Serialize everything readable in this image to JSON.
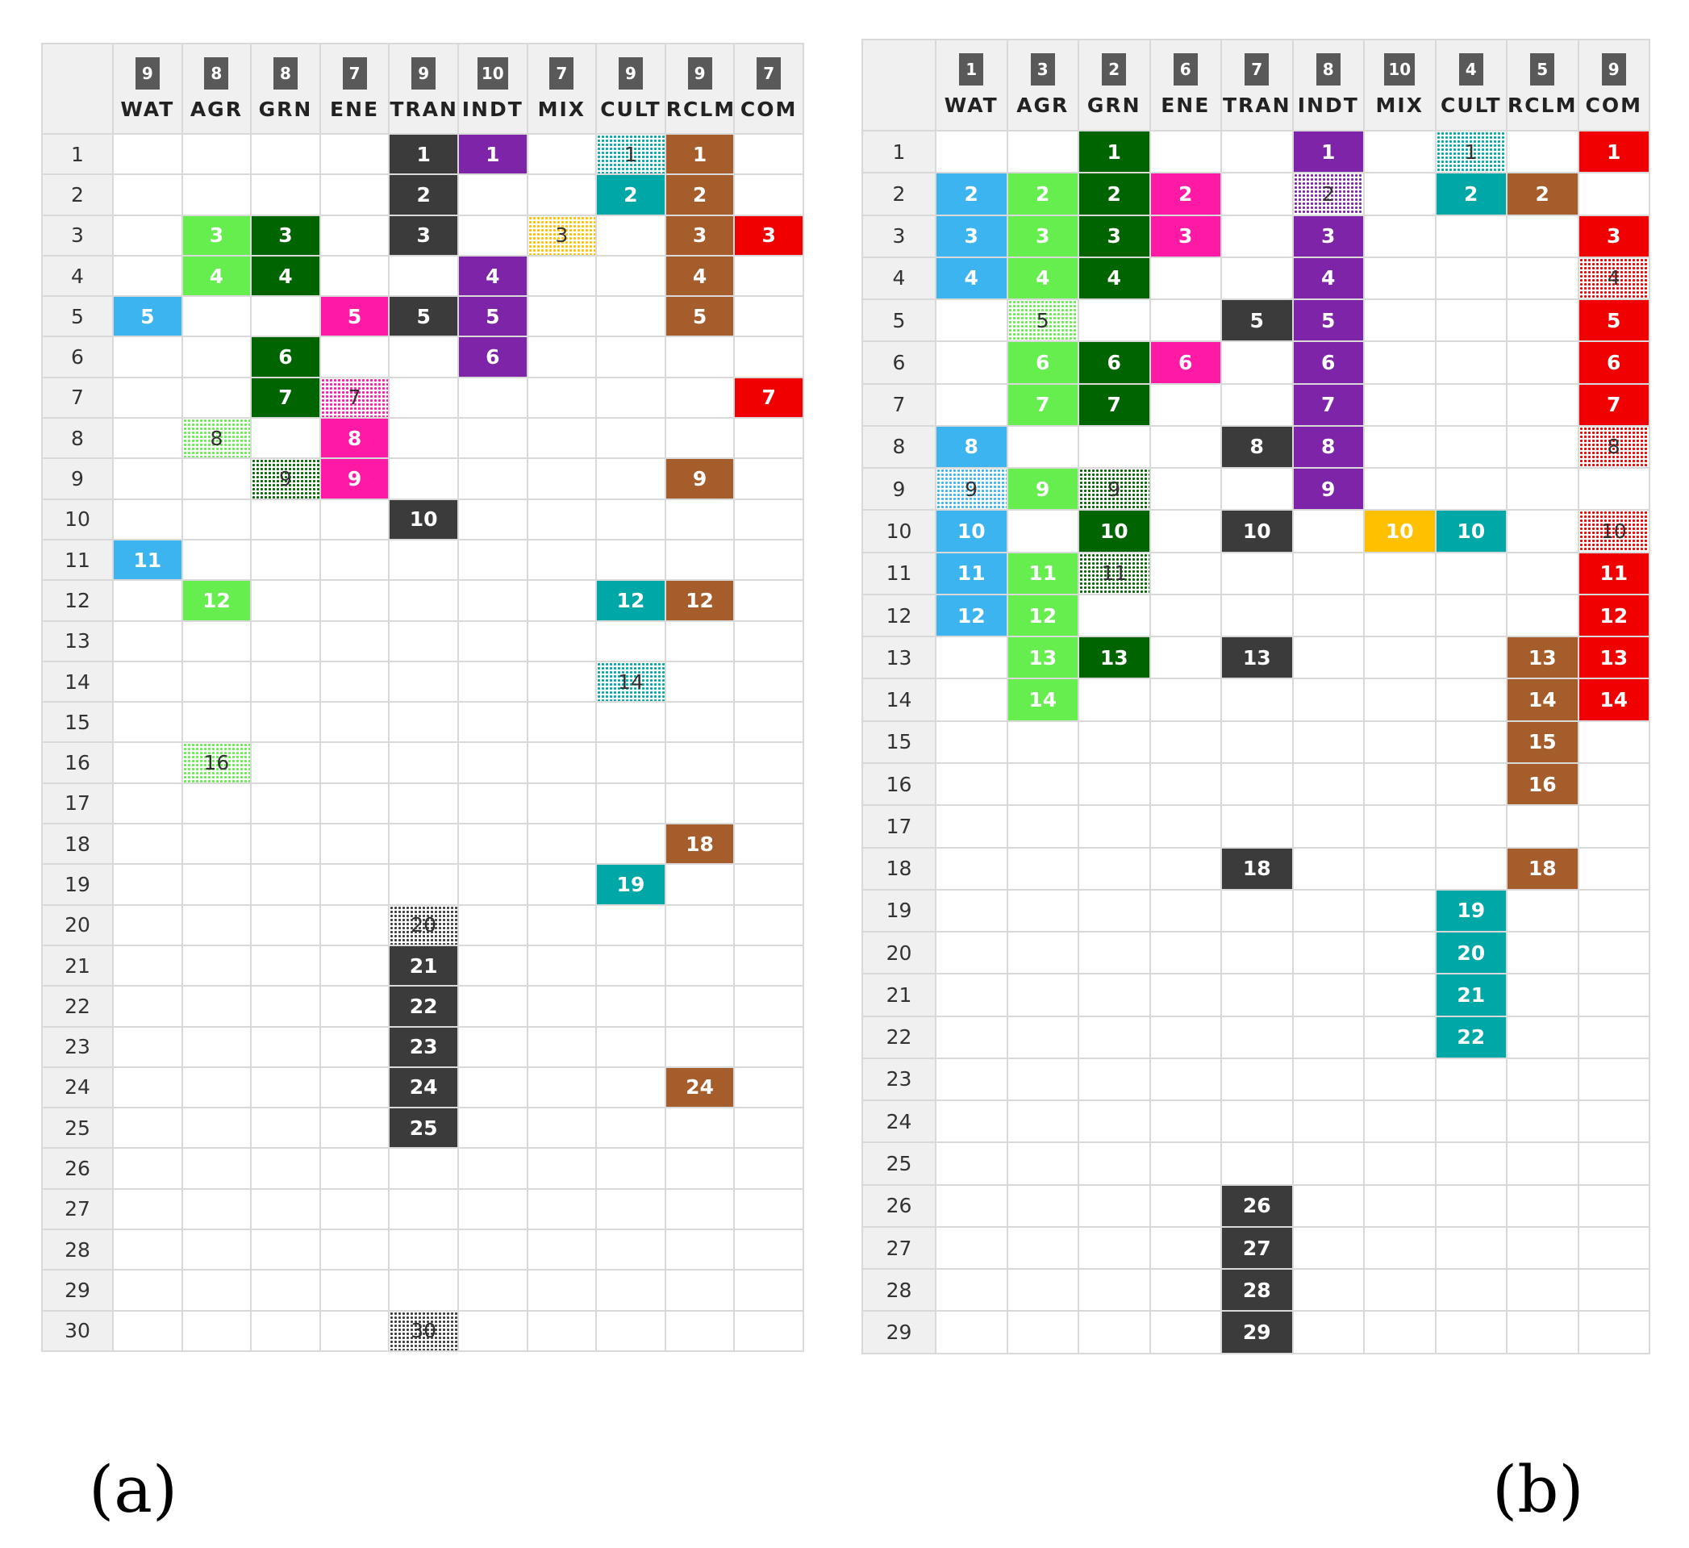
{
  "colors": {
    "WAT": "#3cb4f0",
    "AGR": "#66ee4e",
    "GRN": "#006400",
    "ENE": "#ff1aa6",
    "TRAN": "#3b3b3b",
    "INDT": "#7e24a8",
    "MIX": "#ffc000",
    "CULT": "#00a7a7",
    "RCLM": "#a55d2b",
    "COM": "#f00000"
  },
  "panel_labels": [
    "(a)",
    "(b)"
  ],
  "chart_data": [
    {
      "type": "table",
      "label": "(a)",
      "columns": [
        {
          "key": "WAT",
          "label": "WAT",
          "rank": "9"
        },
        {
          "key": "AGR",
          "label": "AGR",
          "rank": "8"
        },
        {
          "key": "GRN",
          "label": "GRN",
          "rank": "8"
        },
        {
          "key": "ENE",
          "label": "ENE",
          "rank": "7"
        },
        {
          "key": "TRAN",
          "label": "TRAN",
          "rank": "9"
        },
        {
          "key": "INDT",
          "label": "INDT",
          "rank": "10"
        },
        {
          "key": "MIX",
          "label": "MIX",
          "rank": "7"
        },
        {
          "key": "CULT",
          "label": "CULT",
          "rank": "9"
        },
        {
          "key": "RCLM",
          "label": "RCLM",
          "rank": "9"
        },
        {
          "key": "COM",
          "label": "COM",
          "rank": "7"
        }
      ],
      "rows": 30,
      "cells": [
        {
          "row": 1,
          "col": "TRAN",
          "style": "solid"
        },
        {
          "row": 1,
          "col": "INDT",
          "style": "solid"
        },
        {
          "row": 1,
          "col": "CULT",
          "style": "pattern"
        },
        {
          "row": 1,
          "col": "RCLM",
          "style": "solid"
        },
        {
          "row": 2,
          "col": "TRAN",
          "style": "solid"
        },
        {
          "row": 2,
          "col": "CULT",
          "style": "solid"
        },
        {
          "row": 2,
          "col": "RCLM",
          "style": "solid"
        },
        {
          "row": 3,
          "col": "AGR",
          "style": "solid"
        },
        {
          "row": 3,
          "col": "GRN",
          "style": "solid"
        },
        {
          "row": 3,
          "col": "TRAN",
          "style": "solid"
        },
        {
          "row": 3,
          "col": "MIX",
          "style": "pattern"
        },
        {
          "row": 3,
          "col": "RCLM",
          "style": "solid"
        },
        {
          "row": 3,
          "col": "COM",
          "style": "solid"
        },
        {
          "row": 4,
          "col": "AGR",
          "style": "solid"
        },
        {
          "row": 4,
          "col": "GRN",
          "style": "solid"
        },
        {
          "row": 4,
          "col": "INDT",
          "style": "solid"
        },
        {
          "row": 4,
          "col": "RCLM",
          "style": "solid"
        },
        {
          "row": 5,
          "col": "WAT",
          "style": "solid"
        },
        {
          "row": 5,
          "col": "ENE",
          "style": "solid"
        },
        {
          "row": 5,
          "col": "TRAN",
          "style": "solid"
        },
        {
          "row": 5,
          "col": "INDT",
          "style": "solid"
        },
        {
          "row": 5,
          "col": "RCLM",
          "style": "solid"
        },
        {
          "row": 6,
          "col": "GRN",
          "style": "solid"
        },
        {
          "row": 6,
          "col": "INDT",
          "style": "solid"
        },
        {
          "row": 7,
          "col": "GRN",
          "style": "solid"
        },
        {
          "row": 7,
          "col": "ENE",
          "style": "pattern"
        },
        {
          "row": 7,
          "col": "COM",
          "style": "solid"
        },
        {
          "row": 8,
          "col": "AGR",
          "style": "pattern"
        },
        {
          "row": 8,
          "col": "ENE",
          "style": "solid"
        },
        {
          "row": 9,
          "col": "GRN",
          "style": "pattern"
        },
        {
          "row": 9,
          "col": "ENE",
          "style": "solid"
        },
        {
          "row": 9,
          "col": "RCLM",
          "style": "solid"
        },
        {
          "row": 10,
          "col": "TRAN",
          "style": "solid"
        },
        {
          "row": 11,
          "col": "WAT",
          "style": "solid"
        },
        {
          "row": 12,
          "col": "AGR",
          "style": "solid"
        },
        {
          "row": 12,
          "col": "CULT",
          "style": "solid"
        },
        {
          "row": 12,
          "col": "RCLM",
          "style": "solid"
        },
        {
          "row": 14,
          "col": "CULT",
          "style": "pattern"
        },
        {
          "row": 16,
          "col": "AGR",
          "style": "pattern"
        },
        {
          "row": 18,
          "col": "RCLM",
          "style": "solid"
        },
        {
          "row": 19,
          "col": "CULT",
          "style": "solid"
        },
        {
          "row": 20,
          "col": "TRAN",
          "style": "pattern"
        },
        {
          "row": 21,
          "col": "TRAN",
          "style": "solid"
        },
        {
          "row": 22,
          "col": "TRAN",
          "style": "solid"
        },
        {
          "row": 23,
          "col": "TRAN",
          "style": "solid"
        },
        {
          "row": 24,
          "col": "TRAN",
          "style": "solid"
        },
        {
          "row": 24,
          "col": "RCLM",
          "style": "solid"
        },
        {
          "row": 25,
          "col": "TRAN",
          "style": "solid"
        },
        {
          "row": 30,
          "col": "TRAN",
          "style": "pattern"
        }
      ]
    },
    {
      "type": "table",
      "label": "(b)",
      "columns": [
        {
          "key": "WAT",
          "label": "WAT",
          "rank": "1"
        },
        {
          "key": "AGR",
          "label": "AGR",
          "rank": "3"
        },
        {
          "key": "GRN",
          "label": "GRN",
          "rank": "2"
        },
        {
          "key": "ENE",
          "label": "ENE",
          "rank": "6"
        },
        {
          "key": "TRAN",
          "label": "TRAN",
          "rank": "7"
        },
        {
          "key": "INDT",
          "label": "INDT",
          "rank": "8"
        },
        {
          "key": "MIX",
          "label": "MIX",
          "rank": "10"
        },
        {
          "key": "CULT",
          "label": "CULT",
          "rank": "4"
        },
        {
          "key": "RCLM",
          "label": "RCLM",
          "rank": "5"
        },
        {
          "key": "COM",
          "label": "COM",
          "rank": "9"
        }
      ],
      "rows": 29,
      "cells": [
        {
          "row": 1,
          "col": "GRN",
          "style": "solid"
        },
        {
          "row": 1,
          "col": "INDT",
          "style": "solid"
        },
        {
          "row": 1,
          "col": "CULT",
          "style": "pattern"
        },
        {
          "row": 1,
          "col": "COM",
          "style": "solid"
        },
        {
          "row": 2,
          "col": "WAT",
          "style": "solid"
        },
        {
          "row": 2,
          "col": "AGR",
          "style": "solid"
        },
        {
          "row": 2,
          "col": "GRN",
          "style": "solid"
        },
        {
          "row": 2,
          "col": "ENE",
          "style": "solid"
        },
        {
          "row": 2,
          "col": "INDT",
          "style": "pattern"
        },
        {
          "row": 2,
          "col": "CULT",
          "style": "solid"
        },
        {
          "row": 2,
          "col": "RCLM",
          "style": "solid"
        },
        {
          "row": 3,
          "col": "WAT",
          "style": "solid"
        },
        {
          "row": 3,
          "col": "AGR",
          "style": "solid"
        },
        {
          "row": 3,
          "col": "GRN",
          "style": "solid"
        },
        {
          "row": 3,
          "col": "ENE",
          "style": "solid"
        },
        {
          "row": 3,
          "col": "INDT",
          "style": "solid"
        },
        {
          "row": 3,
          "col": "COM",
          "style": "solid"
        },
        {
          "row": 4,
          "col": "WAT",
          "style": "solid"
        },
        {
          "row": 4,
          "col": "AGR",
          "style": "solid"
        },
        {
          "row": 4,
          "col": "GRN",
          "style": "solid"
        },
        {
          "row": 4,
          "col": "INDT",
          "style": "solid"
        },
        {
          "row": 4,
          "col": "COM",
          "style": "pattern"
        },
        {
          "row": 5,
          "col": "AGR",
          "style": "pattern"
        },
        {
          "row": 5,
          "col": "TRAN",
          "style": "solid"
        },
        {
          "row": 5,
          "col": "INDT",
          "style": "solid"
        },
        {
          "row": 5,
          "col": "COM",
          "style": "solid"
        },
        {
          "row": 6,
          "col": "AGR",
          "style": "solid"
        },
        {
          "row": 6,
          "col": "GRN",
          "style": "solid"
        },
        {
          "row": 6,
          "col": "ENE",
          "style": "solid"
        },
        {
          "row": 6,
          "col": "INDT",
          "style": "solid"
        },
        {
          "row": 6,
          "col": "COM",
          "style": "solid"
        },
        {
          "row": 7,
          "col": "AGR",
          "style": "solid"
        },
        {
          "row": 7,
          "col": "GRN",
          "style": "solid"
        },
        {
          "row": 7,
          "col": "INDT",
          "style": "solid"
        },
        {
          "row": 7,
          "col": "COM",
          "style": "solid"
        },
        {
          "row": 8,
          "col": "WAT",
          "style": "solid"
        },
        {
          "row": 8,
          "col": "TRAN",
          "style": "solid"
        },
        {
          "row": 8,
          "col": "INDT",
          "style": "solid"
        },
        {
          "row": 8,
          "col": "COM",
          "style": "pattern"
        },
        {
          "row": 9,
          "col": "WAT",
          "style": "pattern"
        },
        {
          "row": 9,
          "col": "AGR",
          "style": "solid"
        },
        {
          "row": 9,
          "col": "GRN",
          "style": "pattern"
        },
        {
          "row": 9,
          "col": "INDT",
          "style": "solid"
        },
        {
          "row": 10,
          "col": "WAT",
          "style": "solid"
        },
        {
          "row": 10,
          "col": "GRN",
          "style": "solid"
        },
        {
          "row": 10,
          "col": "TRAN",
          "style": "solid"
        },
        {
          "row": 10,
          "col": "MIX",
          "style": "solid"
        },
        {
          "row": 10,
          "col": "CULT",
          "style": "solid"
        },
        {
          "row": 10,
          "col": "COM",
          "style": "pattern"
        },
        {
          "row": 11,
          "col": "WAT",
          "style": "solid"
        },
        {
          "row": 11,
          "col": "AGR",
          "style": "solid"
        },
        {
          "row": 11,
          "col": "GRN",
          "style": "pattern"
        },
        {
          "row": 11,
          "col": "COM",
          "style": "solid"
        },
        {
          "row": 12,
          "col": "WAT",
          "style": "solid"
        },
        {
          "row": 12,
          "col": "AGR",
          "style": "solid"
        },
        {
          "row": 12,
          "col": "COM",
          "style": "solid"
        },
        {
          "row": 13,
          "col": "AGR",
          "style": "solid"
        },
        {
          "row": 13,
          "col": "GRN",
          "style": "solid"
        },
        {
          "row": 13,
          "col": "TRAN",
          "style": "solid"
        },
        {
          "row": 13,
          "col": "RCLM",
          "style": "solid"
        },
        {
          "row": 13,
          "col": "COM",
          "style": "solid"
        },
        {
          "row": 14,
          "col": "AGR",
          "style": "solid"
        },
        {
          "row": 14,
          "col": "RCLM",
          "style": "solid"
        },
        {
          "row": 14,
          "col": "COM",
          "style": "solid"
        },
        {
          "row": 15,
          "col": "RCLM",
          "style": "solid"
        },
        {
          "row": 16,
          "col": "RCLM",
          "style": "solid"
        },
        {
          "row": 18,
          "col": "TRAN",
          "style": "solid"
        },
        {
          "row": 18,
          "col": "RCLM",
          "style": "solid"
        },
        {
          "row": 19,
          "col": "CULT",
          "style": "solid"
        },
        {
          "row": 20,
          "col": "CULT",
          "style": "solid"
        },
        {
          "row": 21,
          "col": "CULT",
          "style": "solid"
        },
        {
          "row": 22,
          "col": "CULT",
          "style": "solid"
        },
        {
          "row": 26,
          "col": "TRAN",
          "style": "solid"
        },
        {
          "row": 27,
          "col": "TRAN",
          "style": "solid"
        },
        {
          "row": 28,
          "col": "TRAN",
          "style": "solid"
        },
        {
          "row": 29,
          "col": "TRAN",
          "style": "solid"
        }
      ]
    }
  ]
}
